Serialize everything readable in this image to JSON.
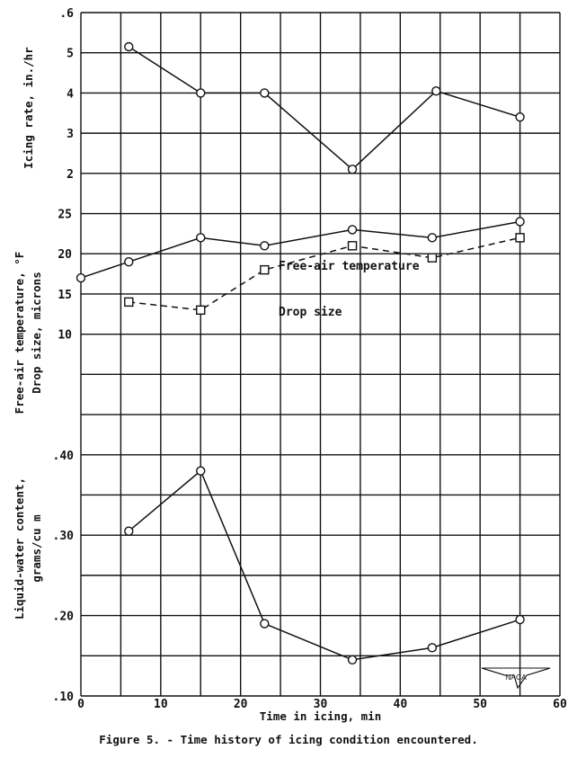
{
  "caption": "Figure 5. - Time history of icing condition encountered.",
  "x_axis": {
    "label": "Time in icing, min",
    "ticks": [
      "0",
      "10",
      "20",
      "30",
      "40",
      "50",
      "60"
    ],
    "range": [
      0,
      60
    ]
  },
  "panels": {
    "icing_rate": {
      "ylabel": "Icing rate, in./hr",
      "ticks": [
        "2",
        "3",
        "4",
        "5",
        ".6"
      ]
    },
    "temp_drop": {
      "ylabel_line1": "Free-air temperature, °F",
      "ylabel_line2": "Drop size, microns",
      "ticks": [
        "10",
        "15",
        "20",
        "25"
      ],
      "annotation_temp": "Free-air temperature",
      "annotation_drop": "Drop size"
    },
    "lwc": {
      "ylabel_line1": "Liquid-water content,",
      "ylabel_line2": "grams/cu m",
      "ticks": [
        ".10",
        ".20",
        ".30",
        ".40"
      ]
    }
  },
  "logo": {
    "text": "NACA"
  },
  "chart_data": [
    {
      "type": "line",
      "title": "Icing rate",
      "xlabel": "Time in icing, min",
      "ylabel": "Icing rate, in./hr",
      "ylim": [
        1,
        6
      ],
      "x": [
        6,
        15,
        23,
        34,
        44.5,
        55
      ],
      "series": [
        {
          "name": "Icing rate",
          "marker": "circle",
          "style": "solid",
          "values": [
            5.15,
            4.0,
            4.0,
            2.1,
            4.05,
            3.4
          ]
        }
      ],
      "grid": true
    },
    {
      "type": "line",
      "title": "Free-air temperature and drop size",
      "xlabel": "Time in icing, min",
      "ylabel": "Free-air temperature, °F / Drop size, microns",
      "ylim": [
        5,
        30
      ],
      "series": [
        {
          "name": "Free-air temperature",
          "marker": "circle",
          "style": "solid",
          "x": [
            0,
            6,
            15,
            23,
            34,
            44,
            55
          ],
          "values": [
            17,
            19,
            22,
            21,
            23,
            22,
            24
          ]
        },
        {
          "name": "Drop size",
          "marker": "square",
          "style": "dashed",
          "x": [
            6,
            15,
            23,
            34,
            44,
            55
          ],
          "values": [
            14,
            13,
            18,
            21,
            19.5,
            22
          ]
        }
      ],
      "grid": true
    },
    {
      "type": "line",
      "title": "Liquid-water content",
      "xlabel": "Time in icing, min",
      "ylabel": "Liquid-water content, grams/cu m",
      "ylim": [
        0.1,
        0.45
      ],
      "x": [
        6,
        15,
        23,
        34,
        44,
        55
      ],
      "series": [
        {
          "name": "Liquid-water content",
          "marker": "circle",
          "style": "solid",
          "values": [
            0.305,
            0.38,
            0.19,
            0.145,
            0.16,
            0.195
          ]
        }
      ],
      "grid": true
    }
  ]
}
